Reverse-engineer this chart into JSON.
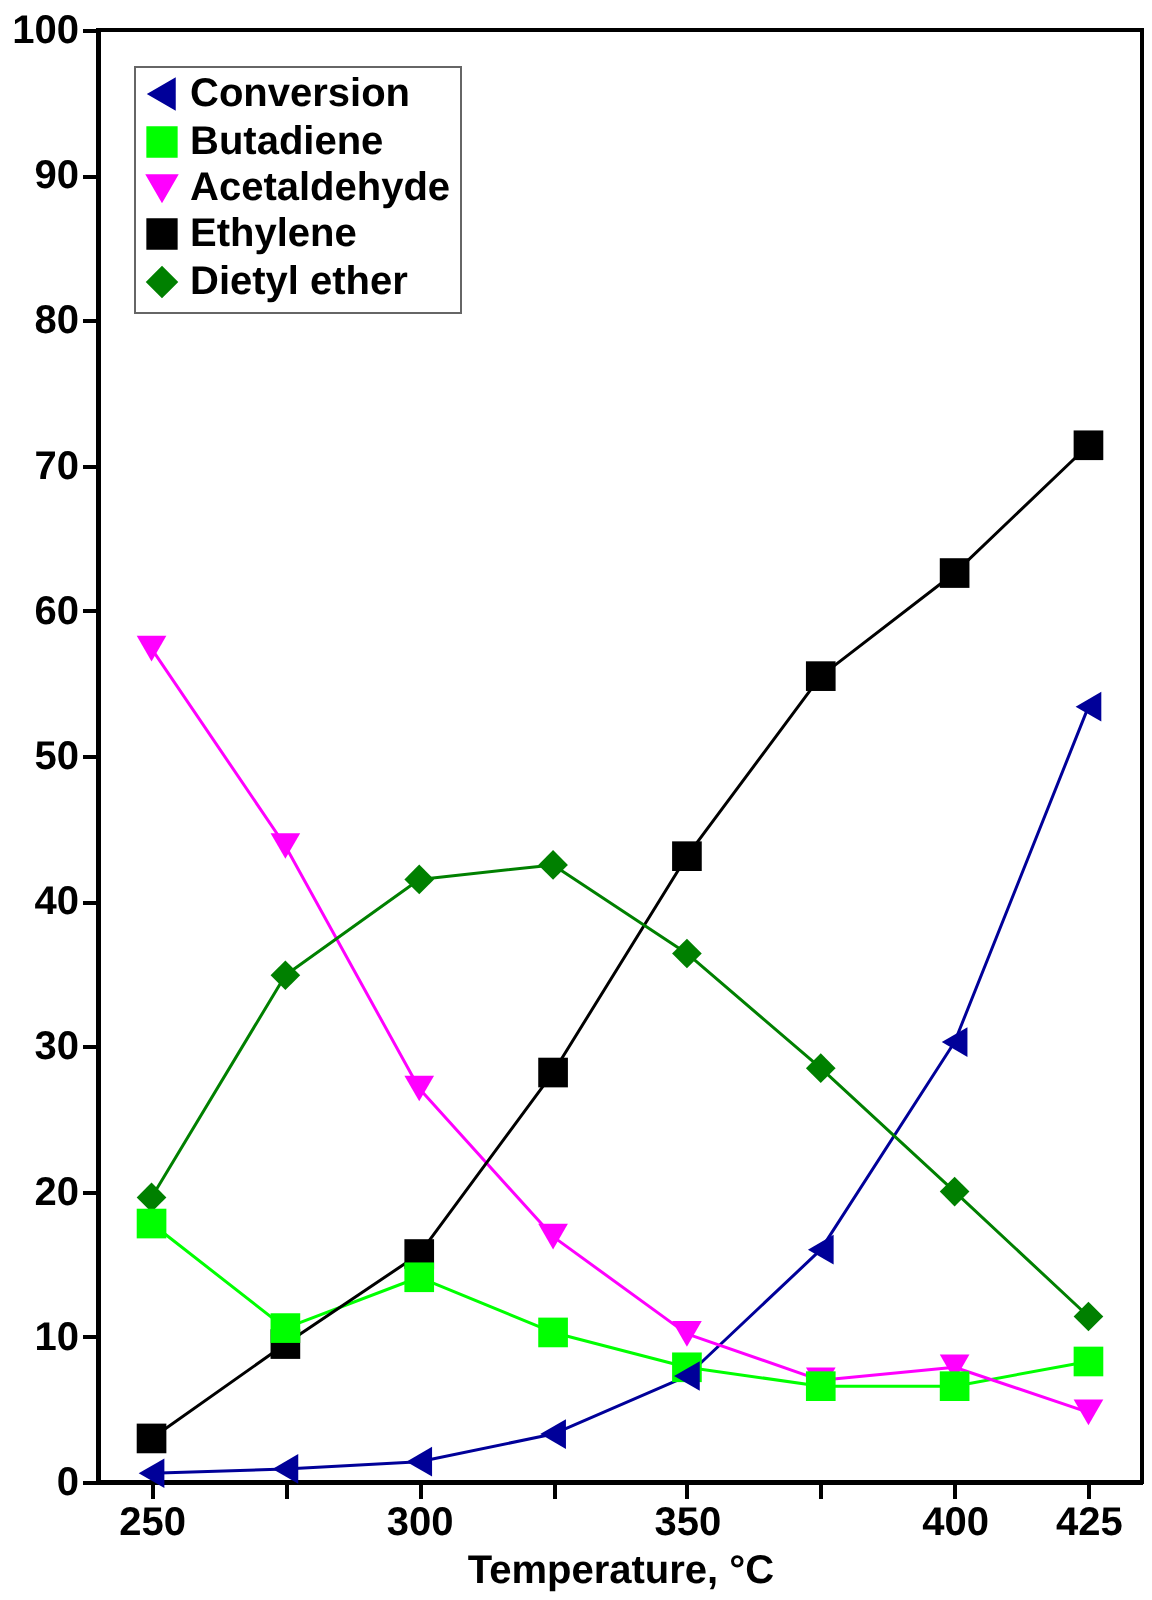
{
  "chart_data": {
    "type": "line",
    "xlabel": "Temperature, °C",
    "x": [
      250,
      275,
      300,
      325,
      350,
      375,
      400,
      425
    ],
    "xlim": [
      240,
      435
    ],
    "xticks": [
      250,
      {
        "value": 275,
        "label": null
      },
      300,
      {
        "value": 325,
        "label": null
      },
      350,
      {
        "value": 375,
        "label": null
      },
      400,
      425
    ],
    "ylim": [
      0,
      100
    ],
    "yticks": [
      0,
      10,
      20,
      30,
      40,
      50,
      60,
      70,
      80,
      90,
      100
    ],
    "grid": false,
    "legend": "top left",
    "series": [
      {
        "name": "Conversion",
        "color": "#000099",
        "marker": "triangle",
        "values": [
          0.6,
          0.9,
          1.4,
          3.3,
          7.3,
          16.0,
          30.3,
          53.4
        ]
      },
      {
        "name": "Butadiene",
        "color": "#00ff00",
        "marker": "square",
        "values": [
          17.8,
          10.6,
          14.1,
          10.3,
          7.9,
          6.6,
          6.6,
          8.3
        ]
      },
      {
        "name": "Acetaldehyde",
        "color": "#ff00ff",
        "marker": "triangle",
        "values": [
          57.4,
          43.8,
          27.1,
          16.9,
          10.2,
          7.0,
          7.9,
          4.8
        ]
      },
      {
        "name": "Ethylene",
        "color": "#000000",
        "marker": "square",
        "values": [
          3.0,
          9.5,
          15.7,
          28.2,
          43.1,
          55.5,
          62.6,
          71.4
        ]
      },
      {
        "name": "Dietyl ether",
        "color": "#008000",
        "marker": "diamond",
        "values": [
          19.6,
          34.9,
          41.5,
          42.5,
          36.4,
          28.5,
          20.0,
          11.4
        ]
      }
    ]
  }
}
